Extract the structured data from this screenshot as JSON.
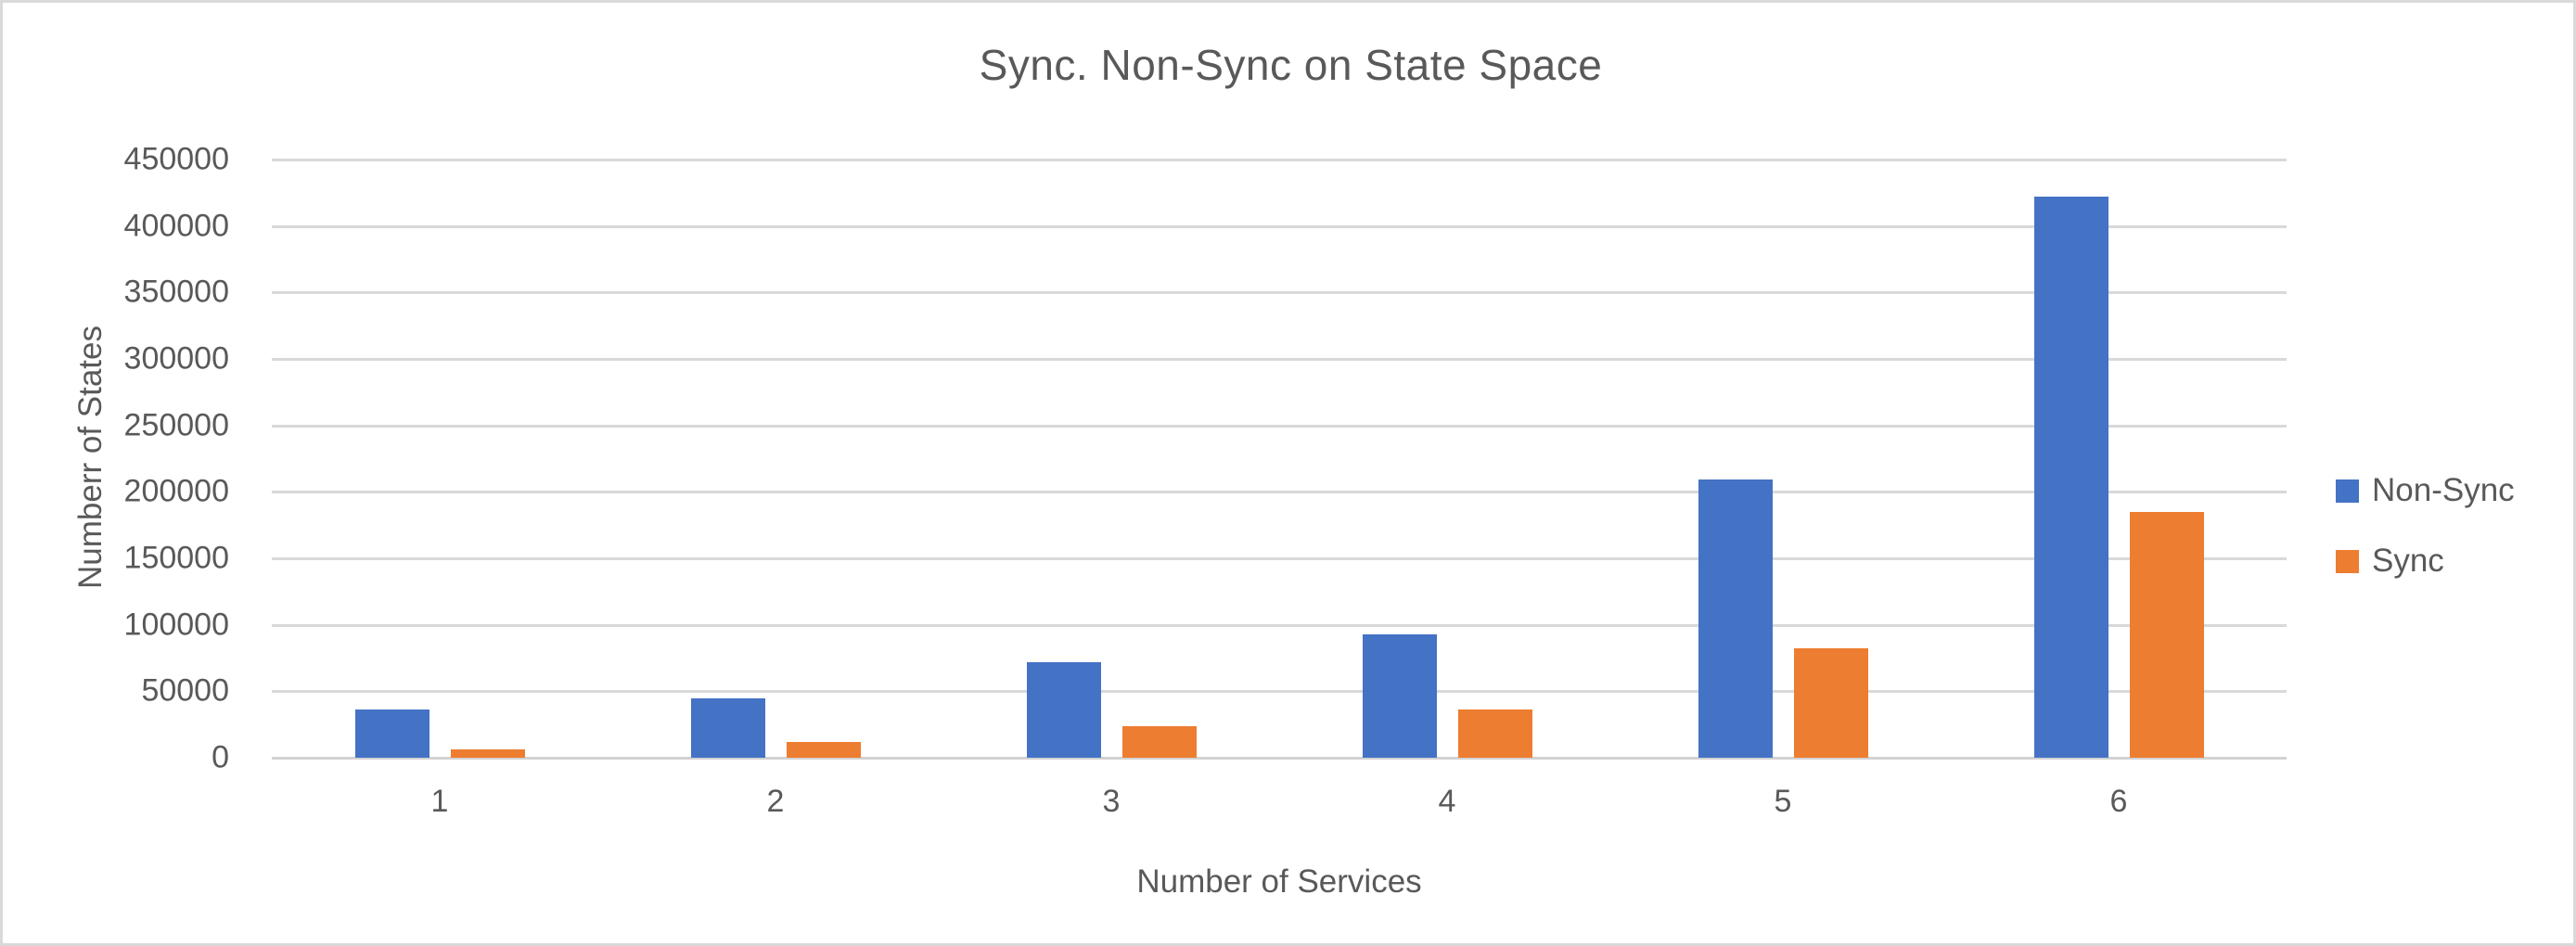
{
  "chart_data": {
    "type": "bar",
    "title": "Sync. Non-Sync on State Space",
    "xlabel": "Number of Services",
    "ylabel": "Numberr of States",
    "categories": [
      "1",
      "2",
      "3",
      "4",
      "5",
      "6"
    ],
    "series": [
      {
        "name": "Non-Sync",
        "color": "#4472C4",
        "values": [
          36000,
          45000,
          72000,
          93000,
          209000,
          422000
        ]
      },
      {
        "name": "Sync",
        "color": "#ED7D31",
        "values": [
          6000,
          12000,
          24000,
          36000,
          82000,
          185000
        ]
      }
    ],
    "ylim": [
      0,
      450000
    ],
    "ytick_step": 50000,
    "ytick_labels": [
      "0",
      "50000",
      "100000",
      "150000",
      "200000",
      "250000",
      "300000",
      "350000",
      "400000",
      "450000"
    ],
    "grid": "horizontal",
    "gridline_color": "#d9d9d9",
    "text_color": "#595959",
    "legend_position": "right",
    "legend_entries": [
      "Non-Sync",
      "Sync"
    ]
  }
}
